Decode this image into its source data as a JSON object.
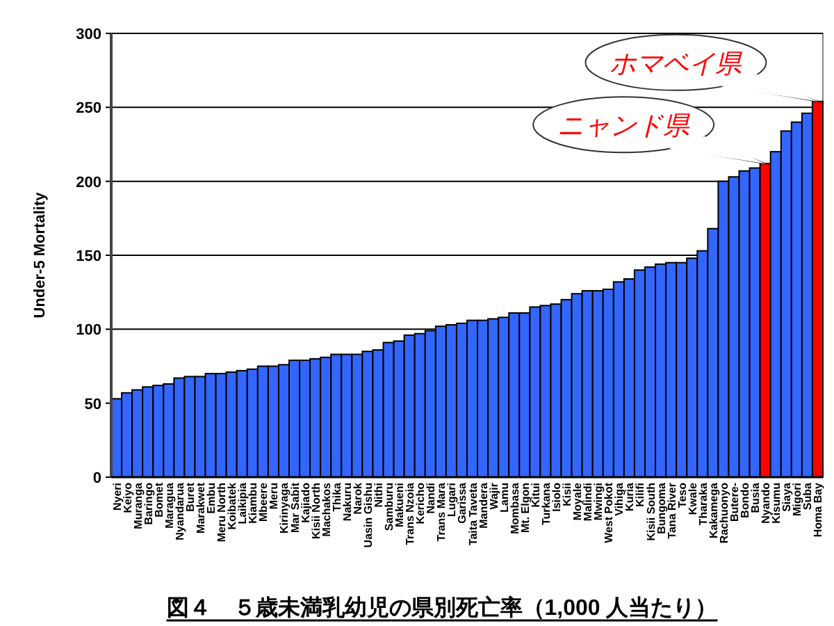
{
  "chart_data": {
    "type": "bar",
    "title": "図４　５歳未満乳幼児の県別死亡率（1,000 人当たり）",
    "ylabel": "Under-5 Mortality",
    "categories": [
      "Nyeri",
      "Keiyo",
      "Muranga",
      "Baringo",
      "Bomet",
      "Maragua",
      "Nyandarua",
      "Buret",
      "Marakwet",
      "Embu",
      "Meru North",
      "Koibatek",
      "Laikipia",
      "Kiambu",
      "Mbeere",
      "Meru",
      "Kirinyaga",
      "Mar Sabit",
      "Kajiado",
      "Kisii North",
      "Machakos",
      "Thika",
      "Nakuru",
      "Narok",
      "Uasin Gishu",
      "Nithi",
      "Samburu",
      "Makueni",
      "Trans Nzoia",
      "Kericho",
      "Nandi",
      "Trans Mara",
      "Lugari",
      "Garissa",
      "Taita Taveta",
      "Mandera",
      "Wajir",
      "Lamu",
      "Mombasa",
      "Mt. Elgon",
      "Kitui",
      "Turkana",
      "Isiolo",
      "Kisii",
      "Moyale",
      "Malindi",
      "Mwingi",
      "West Pokot",
      "Vihiga",
      "Kuria",
      "Kilifi",
      "Kisii South",
      "Bungoma",
      "Tana River",
      "Teso",
      "Kwale",
      "Tharaka",
      "Kakamega",
      "Rachuonyo",
      "Butere-",
      "Bondo",
      "Busia",
      "Nyando",
      "Kisumu",
      "Siaya",
      "Migori",
      "Suba",
      "Homa Bay"
    ],
    "values": [
      53,
      57,
      59,
      61,
      62,
      63,
      67,
      68,
      68,
      70,
      70,
      71,
      72,
      73,
      75,
      75,
      76,
      79,
      79,
      80,
      81,
      83,
      83,
      83,
      85,
      86,
      91,
      92,
      96,
      97,
      99,
      102,
      103,
      104,
      106,
      106,
      107,
      108,
      111,
      111,
      115,
      116,
      117,
      120,
      124,
      126,
      126,
      127,
      132,
      134,
      140,
      142,
      144,
      145,
      145,
      148,
      153,
      168,
      200,
      203,
      207,
      209,
      212,
      220,
      234,
      240,
      246,
      254
    ],
    "colors": [
      "#3366ff",
      "#3366ff",
      "#3366ff",
      "#3366ff",
      "#3366ff",
      "#3366ff",
      "#3366ff",
      "#3366ff",
      "#3366ff",
      "#3366ff",
      "#3366ff",
      "#3366ff",
      "#3366ff",
      "#3366ff",
      "#3366ff",
      "#3366ff",
      "#3366ff",
      "#3366ff",
      "#3366ff",
      "#3366ff",
      "#3366ff",
      "#3366ff",
      "#3366ff",
      "#3366ff",
      "#3366ff",
      "#3366ff",
      "#3366ff",
      "#3366ff",
      "#3366ff",
      "#3366ff",
      "#3366ff",
      "#3366ff",
      "#3366ff",
      "#3366ff",
      "#3366ff",
      "#3366ff",
      "#3366ff",
      "#3366ff",
      "#3366ff",
      "#3366ff",
      "#3366ff",
      "#3366ff",
      "#3366ff",
      "#3366ff",
      "#3366ff",
      "#3366ff",
      "#3366ff",
      "#3366ff",
      "#3366ff",
      "#3366ff",
      "#3366ff",
      "#3366ff",
      "#3366ff",
      "#3366ff",
      "#3366ff",
      "#3366ff",
      "#3366ff",
      "#3366ff",
      "#3366ff",
      "#3366ff",
      "#3366ff",
      "#3366ff",
      "#ff0000",
      "#3366ff",
      "#3366ff",
      "#3366ff",
      "#3366ff",
      "#ff0000"
    ],
    "ylim": [
      0,
      300
    ],
    "yticks": [
      0,
      50,
      100,
      150,
      200,
      250,
      300
    ],
    "grid": "y",
    "annotations": [
      {
        "text": "ホマベイ県",
        "x": "Homa Bay",
        "y": 254
      },
      {
        "text": "ニャンド県",
        "x": "Nyando",
        "y": 212
      }
    ]
  }
}
